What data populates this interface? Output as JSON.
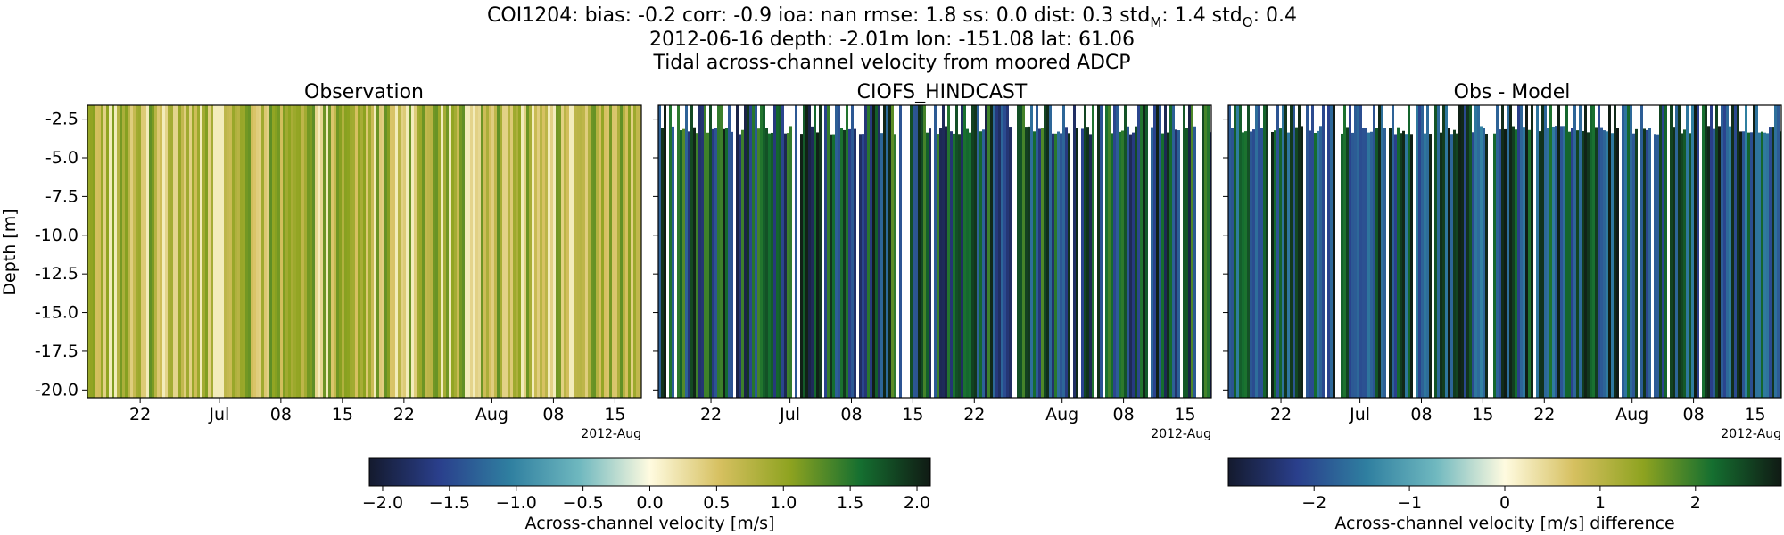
{
  "header": {
    "line1_prefix": "COI1204: bias: -0.2  corr: -0.9  ioa: nan  rmse: 1.8  ss: 0.0  dist: 0.3  std",
    "std_m_sub": "M",
    "line1_mid": ": 1.4  std",
    "std_o_sub": "O",
    "line1_suffix": ": 0.4",
    "line2": "2012-06-16 depth: -2.01m lon: -151.08 lat: 61.06",
    "line3": "Tidal across-channel velocity from moored ADCP"
  },
  "chart_data": [
    {
      "type": "heatmap",
      "title": "Observation",
      "ylabel": "Depth [m]",
      "ylim": [
        -20.5,
        -1.6
      ],
      "y_ticks": [
        "-2.5",
        "-5.0",
        "-7.5",
        "-10.0",
        "-12.5",
        "-15.0",
        "-17.5",
        "-20.0"
      ],
      "x_range": [
        "2012-06-16",
        "2012-08-18"
      ],
      "x_ticks": [
        "22",
        "Jul",
        "08",
        "15",
        "22",
        "Aug",
        "08",
        "15"
      ],
      "x_offset_label": "2012-Aug",
      "colormap": "tarn-like diverging",
      "vmin": -2.0,
      "vmax": 2.0,
      "typical_values": [
        0.3,
        1.2
      ],
      "dominant_colors": [
        "#cbbb5a",
        "#8aa32a",
        "#e8dc8f"
      ]
    },
    {
      "type": "heatmap",
      "title": "CIOFS_HINDCAST",
      "ylim": [
        -20.5,
        -1.6
      ],
      "x_range": [
        "2012-06-16",
        "2012-08-18"
      ],
      "x_ticks": [
        "22",
        "Jul",
        "08",
        "15",
        "22",
        "Aug",
        "08",
        "15"
      ],
      "x_offset_label": "2012-Aug",
      "colormap": "tarn-like diverging",
      "vmin": -2.0,
      "vmax": 2.0,
      "typical_values": [
        -1.5,
        1.6
      ],
      "dominant_colors": [
        "#1c4a5a",
        "#2e7f88",
        "#5f8f2b"
      ]
    },
    {
      "type": "heatmap",
      "title": "Obs - Model",
      "ylim": [
        -20.5,
        -1.6
      ],
      "x_range": [
        "2012-06-16",
        "2012-08-18"
      ],
      "x_ticks": [
        "22",
        "Jul",
        "08",
        "15",
        "22",
        "Aug",
        "08",
        "15"
      ],
      "x_offset_label": "2012-Aug",
      "colormap": "tarn-like diverging",
      "vmin": -2.9,
      "vmax": 2.9,
      "typical_values": [
        -1.8,
        2.5
      ],
      "dominant_colors": [
        "#1d3f3a",
        "#3d6b2e",
        "#2e6f7a"
      ]
    }
  ],
  "colorbars": [
    {
      "label": "Across-channel velocity [m/s]",
      "vmin": -2.1,
      "vmax": 2.1,
      "ticks": [
        "−2.0",
        "−1.5",
        "−1.0",
        "−0.5",
        "0.0",
        "0.5",
        "1.0",
        "1.5",
        "2.0"
      ],
      "tick_values": [
        -2.0,
        -1.5,
        -1.0,
        -0.5,
        0.0,
        0.5,
        1.0,
        1.5,
        2.0
      ]
    },
    {
      "label": "Across-channel velocity [m/s] difference",
      "vmin": -2.9,
      "vmax": 2.9,
      "ticks": [
        "−2",
        "−1",
        "0",
        "1",
        "2"
      ],
      "tick_values": [
        -2,
        -1,
        0,
        1,
        2
      ]
    }
  ],
  "colormap_stops": [
    "#141a2e",
    "#2a3f8c",
    "#2f7fa0",
    "#6fb8bf",
    "#fffbe0",
    "#d6c060",
    "#8ea320",
    "#156f30",
    "#101a14"
  ]
}
